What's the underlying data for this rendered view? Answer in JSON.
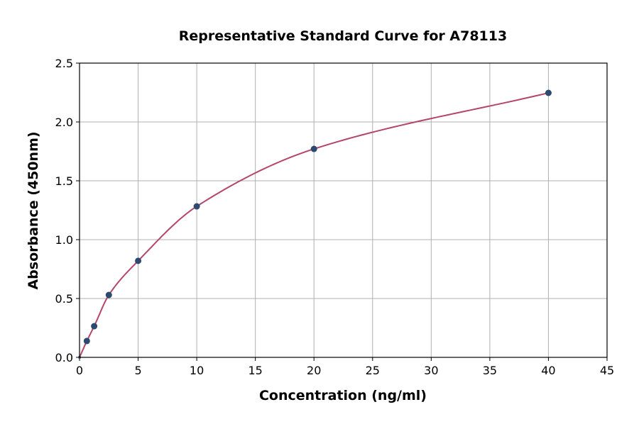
{
  "chart_data": {
    "type": "scatter",
    "title": "Representative Standard Curve for A78113",
    "xlabel": "Concentration (ng/ml)",
    "ylabel": "Absorbance (450nm)",
    "xlim": [
      0,
      45
    ],
    "ylim": [
      0,
      2.5
    ],
    "xticks": [
      0,
      5,
      10,
      15,
      20,
      25,
      30,
      35,
      40,
      45
    ],
    "yticks": [
      0.0,
      0.5,
      1.0,
      1.5,
      2.0,
      2.5
    ],
    "grid": true,
    "points": [
      {
        "x": 0,
        "y": 0.0
      },
      {
        "x": 0.625,
        "y": 0.139
      },
      {
        "x": 1.25,
        "y": 0.265
      },
      {
        "x": 2.5,
        "y": 0.53
      },
      {
        "x": 5,
        "y": 0.82
      },
      {
        "x": 10,
        "y": 1.283
      },
      {
        "x": 20,
        "y": 1.771
      },
      {
        "x": 40,
        "y": 2.247
      }
    ],
    "curve_color": "#b5466b",
    "point_color": "#2c4a6e"
  }
}
